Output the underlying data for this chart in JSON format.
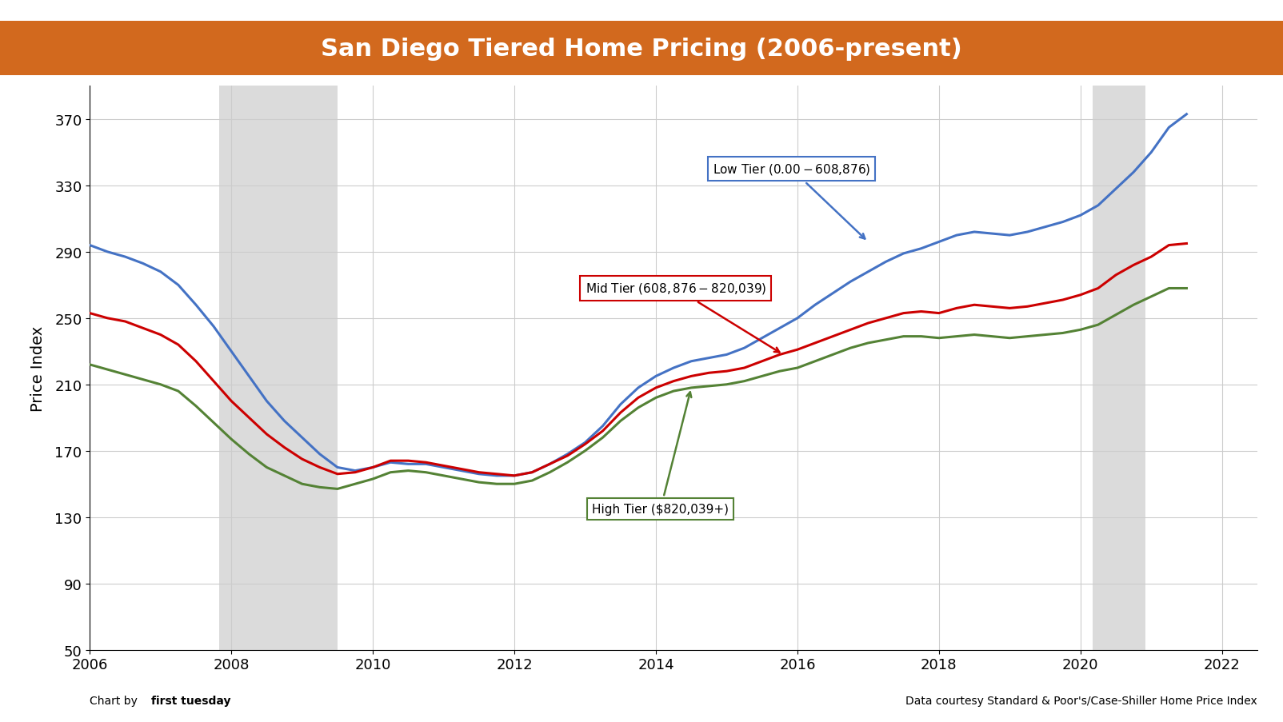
{
  "title": "San Diego Tiered Home Pricing (2006-present)",
  "title_bg_color": "#D2691E",
  "title_bg_color2": "#E8750A",
  "ylabel": "Price Index",
  "ylim": [
    50,
    390
  ],
  "yticks": [
    50,
    90,
    130,
    170,
    210,
    250,
    290,
    330,
    370
  ],
  "xlim": [
    2006.0,
    2022.5
  ],
  "xticks": [
    2006,
    2008,
    2010,
    2012,
    2014,
    2016,
    2018,
    2020,
    2022
  ],
  "recession1_start": 2007.83,
  "recession1_end": 2009.5,
  "recession2_start": 2020.17,
  "recession2_end": 2020.92,
  "footer_left": "Chart by first tuesday",
  "footer_right": "Data courtesy Standard & Poor's/Case-Shiller Home Price Index",
  "low_tier_label": "Low Tier ($0.00 - $608,876)",
  "mid_tier_label": "Mid Tier ($608,876 - $820,039)",
  "high_tier_label": "High Tier ($820,039+)",
  "low_tier_color": "#4472C4",
  "mid_tier_color": "#CC0000",
  "high_tier_color": "#548235",
  "low_tier_x": [
    2006.0,
    2006.25,
    2006.5,
    2006.75,
    2007.0,
    2007.25,
    2007.5,
    2007.75,
    2008.0,
    2008.25,
    2008.5,
    2008.75,
    2009.0,
    2009.25,
    2009.5,
    2009.75,
    2010.0,
    2010.25,
    2010.5,
    2010.75,
    2011.0,
    2011.25,
    2011.5,
    2011.75,
    2012.0,
    2012.25,
    2012.5,
    2012.75,
    2013.0,
    2013.25,
    2013.5,
    2013.75,
    2014.0,
    2014.25,
    2014.5,
    2014.75,
    2015.0,
    2015.25,
    2015.5,
    2015.75,
    2016.0,
    2016.25,
    2016.5,
    2016.75,
    2017.0,
    2017.25,
    2017.5,
    2017.75,
    2018.0,
    2018.25,
    2018.5,
    2018.75,
    2019.0,
    2019.25,
    2019.5,
    2019.75,
    2020.0,
    2020.25,
    2020.5,
    2020.75,
    2021.0,
    2021.25,
    2021.5
  ],
  "low_tier_y": [
    294,
    290,
    287,
    283,
    278,
    270,
    258,
    245,
    230,
    215,
    200,
    188,
    178,
    168,
    160,
    158,
    160,
    163,
    162,
    162,
    160,
    158,
    156,
    155,
    155,
    157,
    162,
    168,
    175,
    185,
    198,
    208,
    215,
    220,
    224,
    226,
    228,
    232,
    238,
    244,
    250,
    258,
    265,
    272,
    278,
    284,
    289,
    292,
    296,
    300,
    302,
    301,
    300,
    302,
    305,
    308,
    312,
    318,
    328,
    338,
    350,
    365,
    373
  ],
  "mid_tier_x": [
    2006.0,
    2006.25,
    2006.5,
    2006.75,
    2007.0,
    2007.25,
    2007.5,
    2007.75,
    2008.0,
    2008.25,
    2008.5,
    2008.75,
    2009.0,
    2009.25,
    2009.5,
    2009.75,
    2010.0,
    2010.25,
    2010.5,
    2010.75,
    2011.0,
    2011.25,
    2011.5,
    2011.75,
    2012.0,
    2012.25,
    2012.5,
    2012.75,
    2013.0,
    2013.25,
    2013.5,
    2013.75,
    2014.0,
    2014.25,
    2014.5,
    2014.75,
    2015.0,
    2015.25,
    2015.5,
    2015.75,
    2016.0,
    2016.25,
    2016.5,
    2016.75,
    2017.0,
    2017.25,
    2017.5,
    2017.75,
    2018.0,
    2018.25,
    2018.5,
    2018.75,
    2019.0,
    2019.25,
    2019.5,
    2019.75,
    2020.0,
    2020.25,
    2020.5,
    2020.75,
    2021.0,
    2021.25,
    2021.5
  ],
  "mid_tier_y": [
    253,
    250,
    248,
    244,
    240,
    234,
    224,
    212,
    200,
    190,
    180,
    172,
    165,
    160,
    156,
    157,
    160,
    164,
    164,
    163,
    161,
    159,
    157,
    156,
    155,
    157,
    162,
    167,
    174,
    182,
    193,
    202,
    208,
    212,
    215,
    217,
    218,
    220,
    224,
    228,
    231,
    235,
    239,
    243,
    247,
    250,
    253,
    254,
    253,
    256,
    258,
    257,
    256,
    257,
    259,
    261,
    264,
    268,
    276,
    282,
    287,
    294,
    295
  ],
  "high_tier_x": [
    2006.0,
    2006.25,
    2006.5,
    2006.75,
    2007.0,
    2007.25,
    2007.5,
    2007.75,
    2008.0,
    2008.25,
    2008.5,
    2008.75,
    2009.0,
    2009.25,
    2009.5,
    2009.75,
    2010.0,
    2010.25,
    2010.5,
    2010.75,
    2011.0,
    2011.25,
    2011.5,
    2011.75,
    2012.0,
    2012.25,
    2012.5,
    2012.75,
    2013.0,
    2013.25,
    2013.5,
    2013.75,
    2014.0,
    2014.25,
    2014.5,
    2014.75,
    2015.0,
    2015.25,
    2015.5,
    2015.75,
    2016.0,
    2016.25,
    2016.5,
    2016.75,
    2017.0,
    2017.25,
    2017.5,
    2017.75,
    2018.0,
    2018.25,
    2018.5,
    2018.75,
    2019.0,
    2019.25,
    2019.5,
    2019.75,
    2020.0,
    2020.25,
    2020.5,
    2020.75,
    2021.0,
    2021.25,
    2021.5
  ],
  "high_tier_y": [
    222,
    219,
    216,
    213,
    210,
    206,
    197,
    187,
    177,
    168,
    160,
    155,
    150,
    148,
    147,
    150,
    153,
    157,
    158,
    157,
    155,
    153,
    151,
    150,
    150,
    152,
    157,
    163,
    170,
    178,
    188,
    196,
    202,
    206,
    208,
    209,
    210,
    212,
    215,
    218,
    220,
    224,
    228,
    232,
    235,
    237,
    239,
    239,
    238,
    239,
    240,
    239,
    238,
    239,
    240,
    241,
    243,
    246,
    252,
    258,
    263,
    268,
    268
  ]
}
